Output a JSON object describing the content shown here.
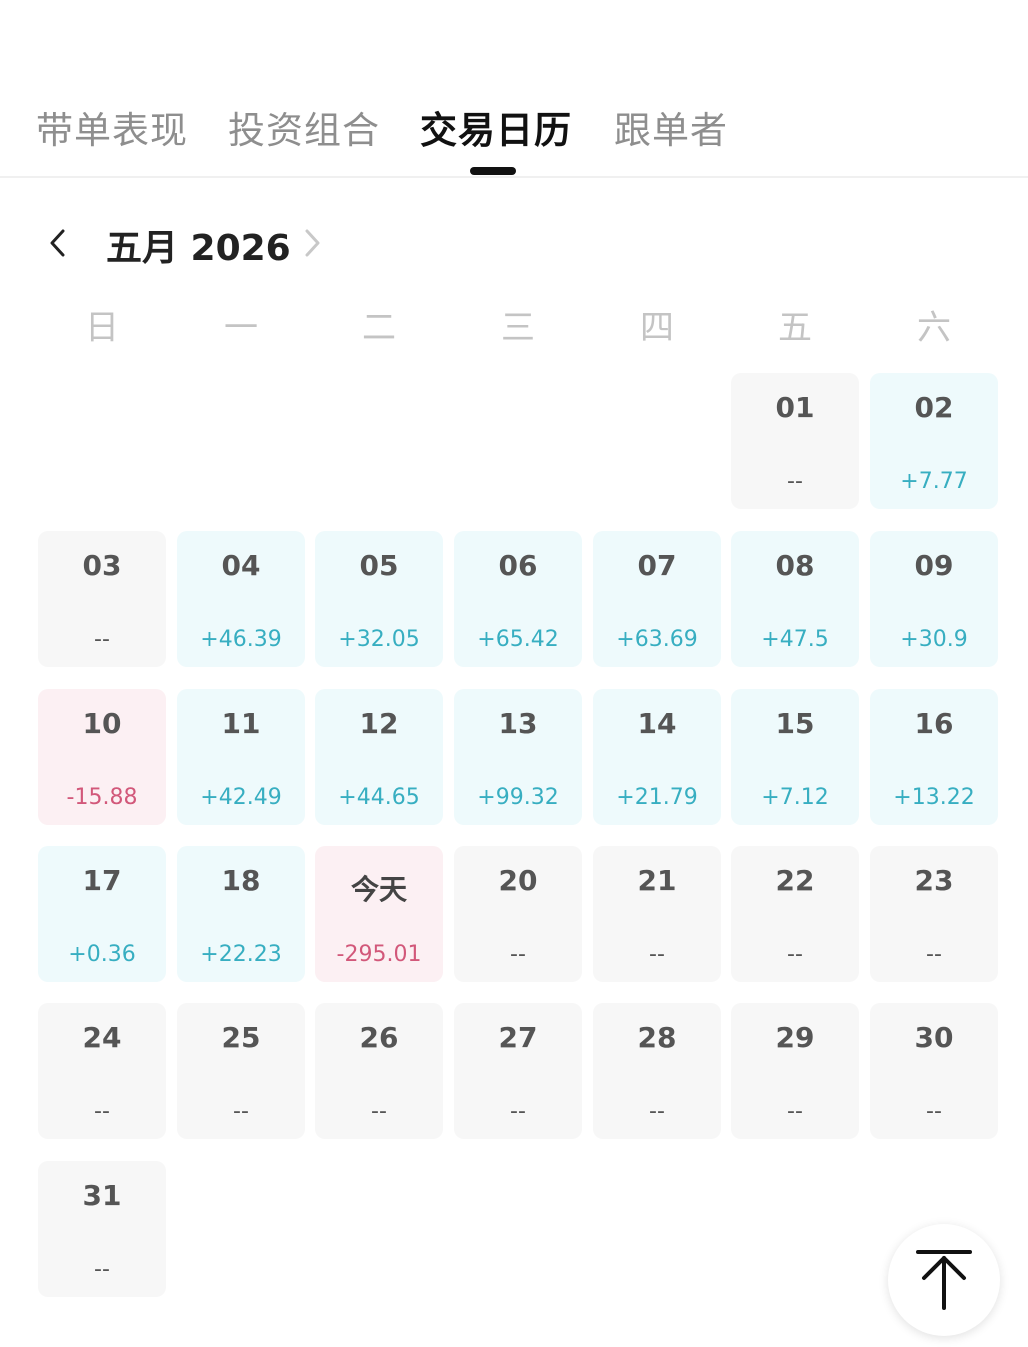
{
  "tabs": [
    {
      "label": "带单表现"
    },
    {
      "label": "投资组合"
    },
    {
      "label": "交易日历"
    },
    {
      "label": "跟单者"
    }
  ],
  "active_tab_index": 2,
  "calendar": {
    "month_label": "五月 2026",
    "weekdays": [
      "日",
      "一",
      "二",
      "三",
      "四",
      "五",
      "六"
    ],
    "days": [
      {
        "day": "01",
        "value": "--",
        "trend": "neutral"
      },
      {
        "day": "02",
        "value": "+7.77",
        "trend": "up"
      },
      {
        "day": "03",
        "value": "--",
        "trend": "neutral"
      },
      {
        "day": "04",
        "value": "+46.39",
        "trend": "up"
      },
      {
        "day": "05",
        "value": "+32.05",
        "trend": "up"
      },
      {
        "day": "06",
        "value": "+65.42",
        "trend": "up"
      },
      {
        "day": "07",
        "value": "+63.69",
        "trend": "up"
      },
      {
        "day": "08",
        "value": "+47.5",
        "trend": "up"
      },
      {
        "day": "09",
        "value": "+30.9",
        "trend": "up"
      },
      {
        "day": "10",
        "value": "-15.88",
        "trend": "down"
      },
      {
        "day": "11",
        "value": "+42.49",
        "trend": "up"
      },
      {
        "day": "12",
        "value": "+44.65",
        "trend": "up"
      },
      {
        "day": "13",
        "value": "+99.32",
        "trend": "up"
      },
      {
        "day": "14",
        "value": "+21.79",
        "trend": "up"
      },
      {
        "day": "15",
        "value": "+7.12",
        "trend": "up"
      },
      {
        "day": "16",
        "value": "+13.22",
        "trend": "up"
      },
      {
        "day": "17",
        "value": "+0.36",
        "trend": "up"
      },
      {
        "day": "18",
        "value": "+22.23",
        "trend": "up"
      },
      {
        "day": "今天",
        "value": "-295.01",
        "trend": "down",
        "today": true
      },
      {
        "day": "20",
        "value": "--",
        "trend": "neutral"
      },
      {
        "day": "21",
        "value": "--",
        "trend": "neutral"
      },
      {
        "day": "22",
        "value": "--",
        "trend": "neutral"
      },
      {
        "day": "23",
        "value": "--",
        "trend": "neutral"
      },
      {
        "day": "24",
        "value": "--",
        "trend": "neutral"
      },
      {
        "day": "25",
        "value": "--",
        "trend": "neutral"
      },
      {
        "day": "26",
        "value": "--",
        "trend": "neutral"
      },
      {
        "day": "27",
        "value": "--",
        "trend": "neutral"
      },
      {
        "day": "28",
        "value": "--",
        "trend": "neutral"
      },
      {
        "day": "29",
        "value": "--",
        "trend": "neutral"
      },
      {
        "day": "30",
        "value": "--",
        "trend": "neutral"
      },
      {
        "day": "31",
        "value": "--",
        "trend": "neutral"
      }
    ]
  },
  "icons": {
    "prev": "chevron-left-icon",
    "next": "chevron-right-icon",
    "scroll_top": "arrow-up-to-top-icon"
  },
  "colors": {
    "positive": "#37aec1",
    "negative": "#d2587a",
    "active_tab": "#111111",
    "inactive_tab": "#8e8e8e"
  }
}
